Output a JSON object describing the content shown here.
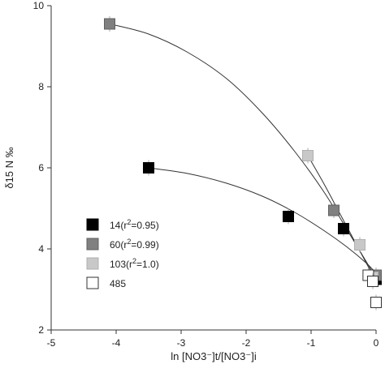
{
  "chart_data": {
    "type": "scatter",
    "title": "",
    "xlabel": "ln [NO3⁻]t/[NO3⁻]i",
    "ylabel": "δ15 N ‰",
    "xlim": [
      -5,
      0
    ],
    "ylim": [
      2,
      10
    ],
    "xticks": [
      -5,
      -4,
      -3,
      -2,
      -1,
      0
    ],
    "yticks": [
      2,
      4,
      6,
      8,
      10
    ],
    "grid": false,
    "legend_position": "bottom-left",
    "series": [
      {
        "name": "14(r²=0.95)",
        "label_main": "14(r",
        "label_sup": "2",
        "label_tail": "=0.95)",
        "fill": "#000000",
        "stroke": "#000000",
        "points": [
          {
            "x": -3.5,
            "y": 6.0
          },
          {
            "x": -1.35,
            "y": 4.8
          },
          {
            "x": -0.5,
            "y": 4.5
          },
          {
            "x": 0.0,
            "y": 3.25
          }
        ],
        "fit": [
          {
            "x": -3.5,
            "y": 6.0
          },
          {
            "x": -2.9,
            "y": 5.86
          },
          {
            "x": -2.3,
            "y": 5.62
          },
          {
            "x": -1.75,
            "y": 5.3
          },
          {
            "x": -1.25,
            "y": 4.9
          },
          {
            "x": -0.8,
            "y": 4.45
          },
          {
            "x": -0.45,
            "y": 4.05
          },
          {
            "x": -0.15,
            "y": 3.65
          },
          {
            "x": 0.0,
            "y": 3.4
          }
        ]
      },
      {
        "name": "60(r²=0.99)",
        "label_main": "60(r",
        "label_sup": "2",
        "label_tail": "=0.99)",
        "fill": "#808080",
        "stroke": "#606060",
        "points": [
          {
            "x": -4.1,
            "y": 9.55
          },
          {
            "x": -0.65,
            "y": 4.95
          },
          {
            "x": 0.0,
            "y": 3.35
          }
        ],
        "fit": [
          {
            "x": -4.1,
            "y": 9.55
          },
          {
            "x": -3.5,
            "y": 9.3
          },
          {
            "x": -2.9,
            "y": 8.85
          },
          {
            "x": -2.3,
            "y": 8.2
          },
          {
            "x": -1.75,
            "y": 7.35
          },
          {
            "x": -1.25,
            "y": 6.4
          },
          {
            "x": -0.8,
            "y": 5.4
          },
          {
            "x": -0.4,
            "y": 4.35
          },
          {
            "x": -0.1,
            "y": 3.55
          },
          {
            "x": 0.0,
            "y": 3.3
          }
        ]
      },
      {
        "name": "103(r²=1.0)",
        "label_main": "103(r",
        "label_sup": "2",
        "label_tail": "=1.0)",
        "fill": "#c8c8c8",
        "stroke": "#b0b0b0",
        "points": [
          {
            "x": -1.05,
            "y": 6.3
          },
          {
            "x": -0.25,
            "y": 4.1
          },
          {
            "x": -0.05,
            "y": 3.3
          }
        ],
        "fit": [
          {
            "x": -1.05,
            "y": 6.3
          },
          {
            "x": -0.8,
            "y": 5.6
          },
          {
            "x": -0.55,
            "y": 4.85
          },
          {
            "x": -0.3,
            "y": 4.1
          },
          {
            "x": -0.1,
            "y": 3.5
          },
          {
            "x": 0.0,
            "y": 3.2
          }
        ]
      },
      {
        "name": "485",
        "label_main": "485",
        "label_sup": "",
        "label_tail": "",
        "fill": "#ffffff",
        "stroke": "#333333",
        "points": [
          {
            "x": -0.12,
            "y": 3.35
          },
          {
            "x": -0.05,
            "y": 3.2
          },
          {
            "x": 0.0,
            "y": 2.68
          }
        ],
        "fit": []
      }
    ]
  }
}
